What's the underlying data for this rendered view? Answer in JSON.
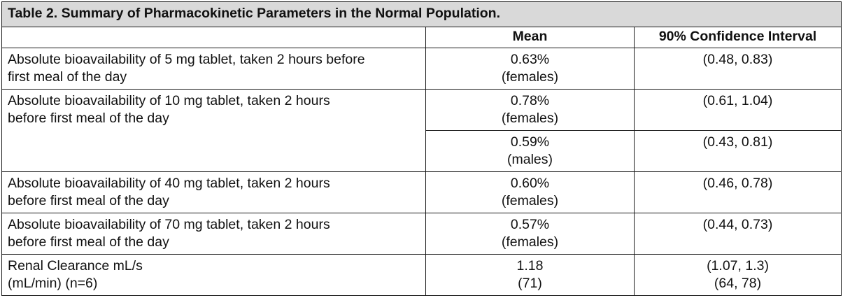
{
  "table": {
    "title": "Table 2. Summary of Pharmacokinetic Parameters in the Normal Population.",
    "headers": {
      "parameter": "",
      "mean": "Mean",
      "ci": "90% Confidence Interval"
    },
    "rows": [
      {
        "parameter": [
          "Absolute bioavailability of 5 mg tablet, taken 2 hours before",
          "first meal of the day"
        ],
        "entries": [
          {
            "mean": [
              "0.63%",
              "(females)"
            ],
            "ci": [
              "(0.48, 0.83)"
            ]
          }
        ]
      },
      {
        "parameter": [
          "Absolute bioavailability of 10 mg tablet, taken 2 hours",
          "before first meal of the day"
        ],
        "entries": [
          {
            "mean": [
              "0.78%",
              "(females)"
            ],
            "ci": [
              "(0.61, 1.04)"
            ]
          },
          {
            "mean": [
              "0.59%",
              "(males)"
            ],
            "ci": [
              "(0.43, 0.81)"
            ]
          }
        ]
      },
      {
        "parameter": [
          "Absolute bioavailability of 40 mg tablet, taken 2 hours",
          "before first meal of the day"
        ],
        "entries": [
          {
            "mean": [
              "0.60%",
              "(females)"
            ],
            "ci": [
              "(0.46, 0.78)"
            ]
          }
        ]
      },
      {
        "parameter": [
          "Absolute bioavailability of 70 mg tablet, taken 2 hours",
          "before first meal of the day"
        ],
        "entries": [
          {
            "mean": [
              "0.57%",
              "(females)"
            ],
            "ci": [
              "(0.44, 0.73)"
            ]
          }
        ]
      },
      {
        "parameter": [
          "Renal Clearance mL/s",
          "(mL/min) (n=6)"
        ],
        "entries": [
          {
            "mean": [
              "1.18",
              "(71)"
            ],
            "ci": [
              "(1.07, 1.3)",
              "(64, 78)"
            ]
          }
        ]
      }
    ]
  }
}
